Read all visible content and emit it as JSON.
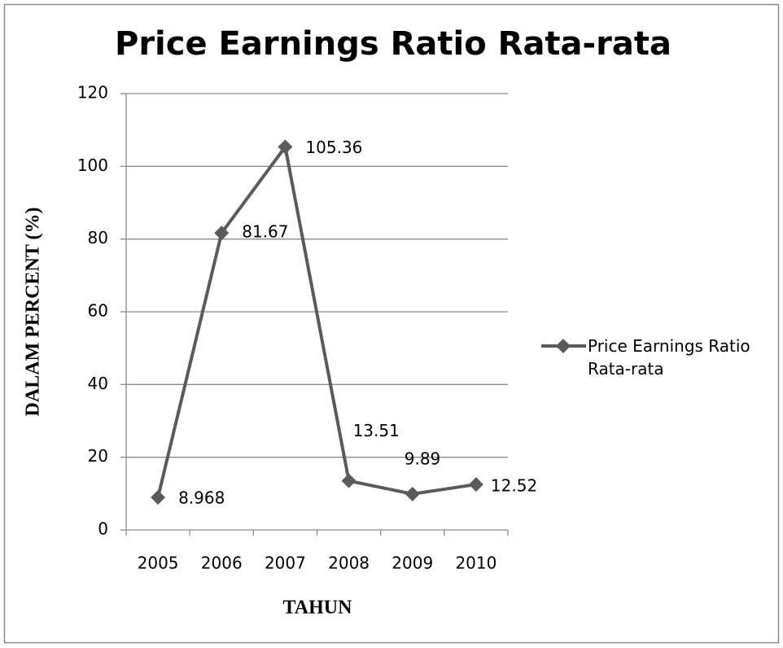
{
  "chart_data": {
    "type": "line",
    "title": "Price Earnings Ratio Rata-rata",
    "x_label": "TAHUN",
    "y_label": "DALAM PERCENT (%)",
    "categories": [
      "2005",
      "2006",
      "2007",
      "2008",
      "2009",
      "2010"
    ],
    "series": [
      {
        "name": "Price Earnings Ratio Rata-rata",
        "color": "#5a5a5a",
        "values": [
          8.968,
          81.67,
          105.36,
          13.51,
          9.89,
          12.52
        ]
      }
    ],
    "ylim": [
      0,
      120
    ],
    "yticks": [
      0,
      20,
      40,
      60,
      80,
      100,
      120
    ],
    "grid": true,
    "legend": "right"
  }
}
